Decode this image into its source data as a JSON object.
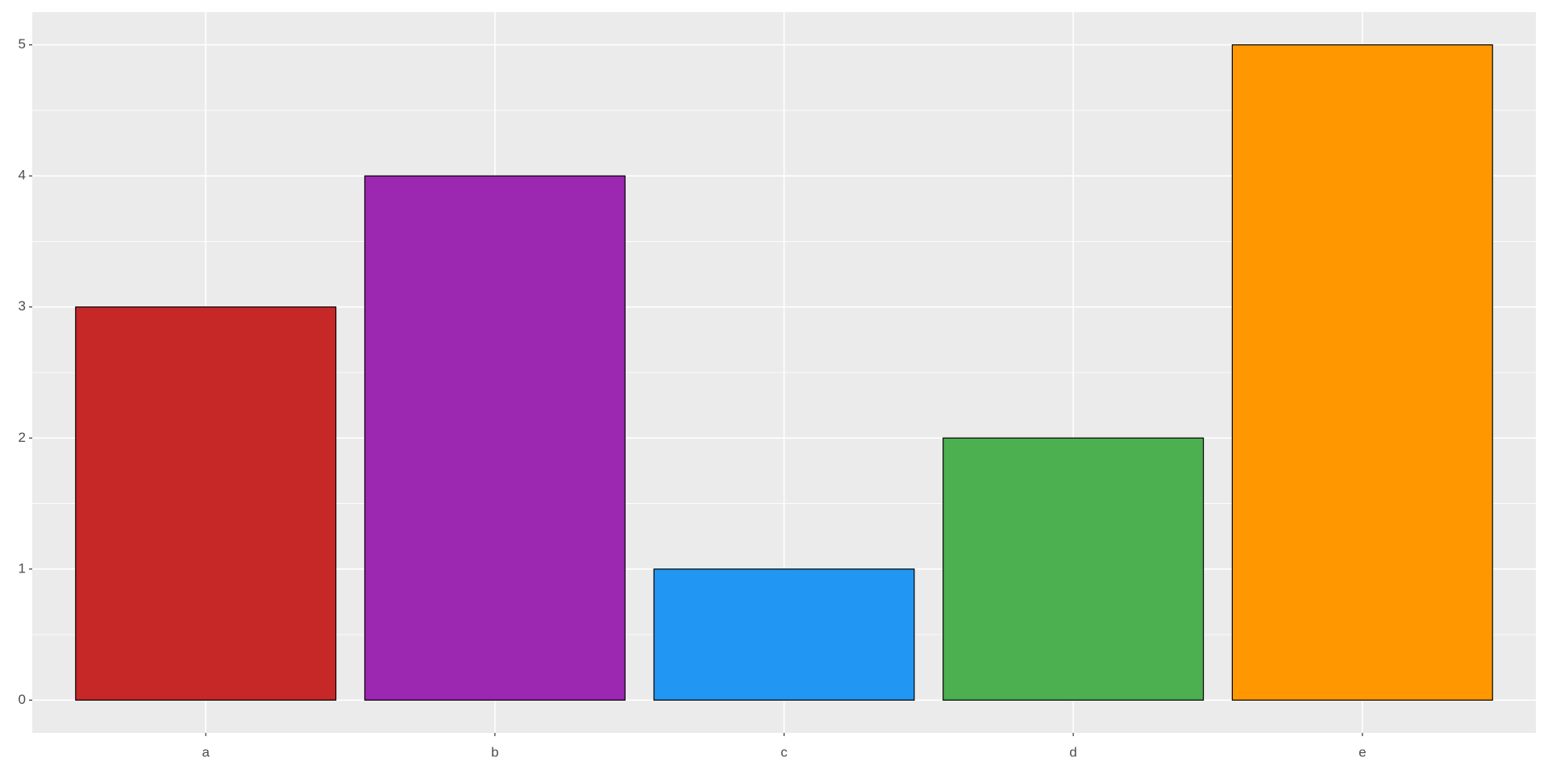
{
  "chart_data": {
    "type": "bar",
    "categories": [
      "a",
      "b",
      "c",
      "d",
      "e"
    ],
    "values": [
      3,
      4,
      1,
      2,
      5
    ],
    "colors": [
      "#c62828",
      "#9c27b0",
      "#2196f3",
      "#4caf50",
      "#ff9800"
    ],
    "ylim": [
      -0.25,
      5.25
    ],
    "yticks": [
      0,
      1,
      2,
      3,
      4,
      5
    ],
    "grid": true,
    "minor_grid": true
  }
}
